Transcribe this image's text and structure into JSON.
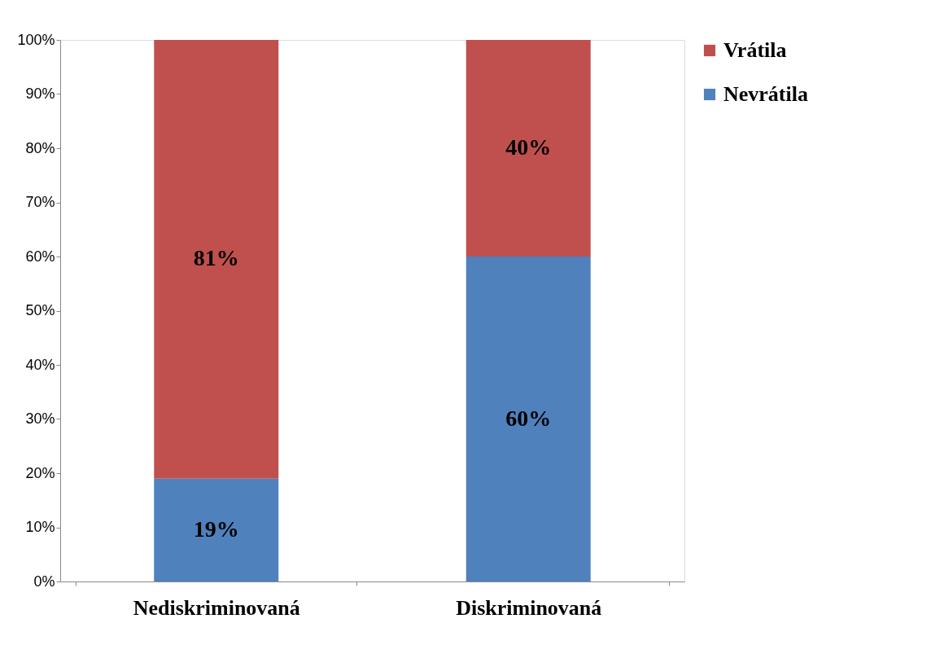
{
  "chart_data": {
    "type": "bar",
    "stacked": true,
    "categories": [
      "Nediskriminovaná",
      "Diskriminovaná"
    ],
    "series": [
      {
        "name": "Nevrátila",
        "color": "#4f81bd",
        "values": [
          19,
          60
        ],
        "value_labels": [
          "19%",
          "60%"
        ]
      },
      {
        "name": "Vrátila",
        "color": "#c0504d",
        "values": [
          81,
          40
        ],
        "value_labels": [
          "81%",
          "40%"
        ]
      }
    ],
    "ylim": [
      0,
      100
    ],
    "yticks": [
      {
        "value": 0,
        "label": "0%"
      },
      {
        "value": 10,
        "label": "10%"
      },
      {
        "value": 20,
        "label": "20%"
      },
      {
        "value": 30,
        "label": "30%"
      },
      {
        "value": 40,
        "label": "40%"
      },
      {
        "value": 50,
        "label": "50%"
      },
      {
        "value": 60,
        "label": "60%"
      },
      {
        "value": 70,
        "label": "70%"
      },
      {
        "value": 80,
        "label": "80%"
      },
      {
        "value": 90,
        "label": "90%"
      },
      {
        "value": 100,
        "label": "100%"
      }
    ],
    "grid": false,
    "legend": "right"
  }
}
